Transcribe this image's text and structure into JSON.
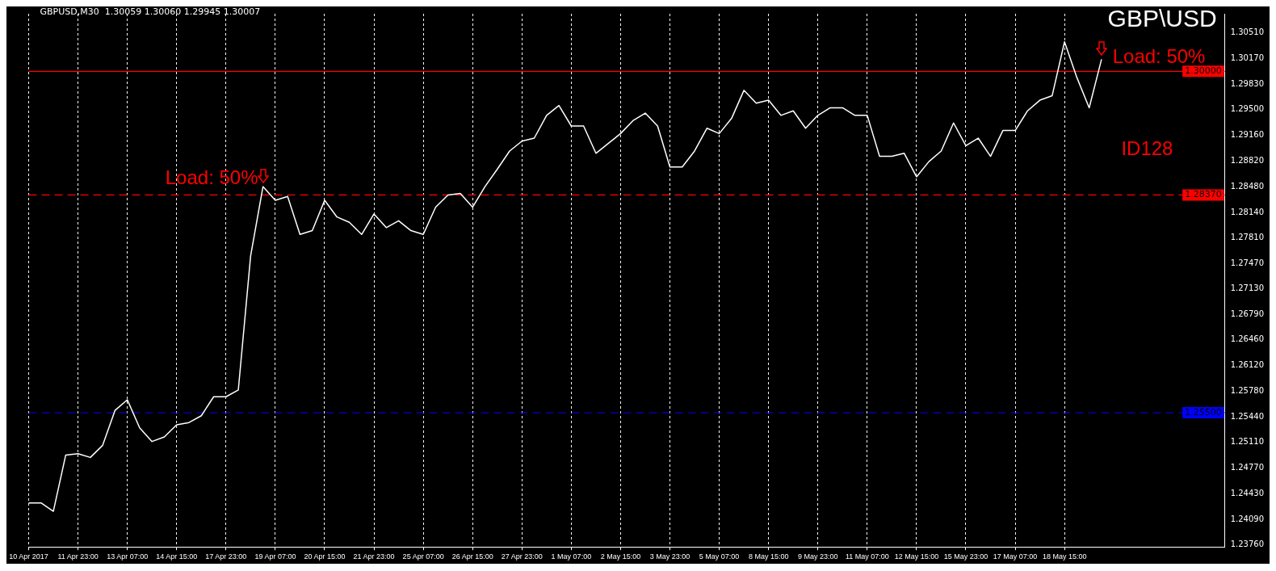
{
  "chart_data": {
    "type": "line",
    "title": "GBP\\USD",
    "subtitle": "GBPUSD,M30  1.30059 1.30060 1.29945 1.30007",
    "categories": [
      "10 Apr 2017",
      null,
      null,
      null,
      "11 Apr 23:00",
      null,
      null,
      null,
      "13 Apr 07:00",
      null,
      null,
      null,
      "14 Apr 15:00",
      null,
      null,
      null,
      "17 Apr 23:00",
      null,
      null,
      null,
      "19 Apr 07:00",
      null,
      null,
      null,
      "20 Apr 15:00",
      null,
      null,
      null,
      "21 Apr 23:00",
      null,
      null,
      null,
      "25 Apr 07:00",
      null,
      null,
      null,
      "26 Apr 15:00",
      null,
      null,
      null,
      "27 Apr 23:00",
      null,
      null,
      null,
      "1 May 07:00",
      null,
      null,
      null,
      "2 May 15:00",
      null,
      null,
      null,
      "3 May 23:00",
      null,
      null,
      null,
      "5 May 07:00",
      null,
      null,
      null,
      "8 May 15:00",
      null,
      null,
      null,
      "9 May 23:00",
      null,
      null,
      null,
      "11 May 07:00",
      null,
      null,
      null,
      "12 May 15:00",
      null,
      null,
      null,
      "15 May 23:00",
      null,
      null,
      null,
      "17 May 07:00",
      null,
      null,
      null,
      "18 May 15:00",
      null,
      null,
      null,
      null,
      null,
      null,
      null,
      null,
      null,
      null,
      null,
      null,
      null
    ],
    "series": [
      {
        "color": "#ffffff",
        "values": [
          1.2431,
          1.2431,
          1.242,
          1.2494,
          1.2496,
          1.2491,
          1.2507,
          1.2553,
          1.2567,
          1.253,
          1.2512,
          1.2518,
          1.2534,
          1.2537,
          1.2546,
          1.2571,
          1.2571,
          1.258,
          1.2757,
          1.2848,
          1.283,
          1.2835,
          1.2785,
          1.279,
          1.283,
          1.2808,
          1.2801,
          1.2785,
          1.2812,
          1.2794,
          1.2803,
          1.279,
          1.2785,
          1.2821,
          1.2837,
          1.2839,
          1.2821,
          1.2848,
          1.2871,
          1.2895,
          1.2908,
          1.2912,
          1.2942,
          1.2955,
          1.2928,
          1.2928,
          1.2892,
          1.2905,
          1.2918,
          1.2935,
          1.2945,
          1.2928,
          1.2874,
          1.2874,
          1.2895,
          1.2925,
          1.2918,
          1.2938,
          1.2975,
          1.2958,
          1.2962,
          1.2942,
          1.2948,
          1.2925,
          1.2942,
          1.2952,
          1.2952,
          1.2942,
          1.2942,
          1.2888,
          1.2888,
          1.2892,
          1.2861,
          1.2881,
          1.2895,
          1.2932,
          1.2902,
          1.2912,
          1.2888,
          1.2922,
          1.2922,
          1.2948,
          1.2962,
          1.2968,
          1.3039,
          1.2992,
          1.2952,
          1.3016,
          null,
          null,
          null,
          null,
          null,
          null,
          null,
          null,
          null,
          null
        ]
      }
    ],
    "ylim": [
      1.2373,
      1.3076
    ],
    "yticks": [
      {
        "value": 1.2376,
        "label": "1.23760"
      },
      {
        "value": 1.2409,
        "label": "1.24090"
      },
      {
        "value": 1.2443,
        "label": "1.24430"
      },
      {
        "value": 1.2477,
        "label": "1.24770"
      },
      {
        "value": 1.2511,
        "label": "1.25110"
      },
      {
        "value": 1.2544,
        "label": "1.25440"
      },
      {
        "value": 1.2578,
        "label": "1.25780"
      },
      {
        "value": 1.2612,
        "label": "1.26120"
      },
      {
        "value": 1.2646,
        "label": "1.26460"
      },
      {
        "value": 1.2679,
        "label": "1.26790"
      },
      {
        "value": 1.2713,
        "label": "1.27130"
      },
      {
        "value": 1.2747,
        "label": "1.27470"
      },
      {
        "value": 1.2781,
        "label": "1.27810"
      },
      {
        "value": 1.2814,
        "label": "1.28140"
      },
      {
        "value": 1.2848,
        "label": "1.28480"
      },
      {
        "value": 1.2882,
        "label": "1.28820"
      },
      {
        "value": 1.2916,
        "label": "1.29160"
      },
      {
        "value": 1.295,
        "label": "1.29500"
      },
      {
        "value": 1.2983,
        "label": "1.29830"
      },
      {
        "value": 1.3017,
        "label": "1.30170"
      },
      {
        "value": 1.3051,
        "label": "1.30510"
      }
    ],
    "ref_lines": [
      {
        "axis": "y",
        "value": 1.3,
        "label": "1.30000",
        "color": "#ff0000",
        "line_style": "solid"
      },
      {
        "axis": "y",
        "value": 1.2837,
        "label": "1.28370",
        "color": "#ff0000",
        "line_style": "dashed"
      },
      {
        "axis": "y",
        "value": 1.255,
        "label": "1.25500",
        "color": "#0000ff",
        "line_style": "dashed"
      }
    ],
    "annotations": [
      "Load: 50%",
      "Load: 50%",
      "ID128"
    ],
    "grid": "x",
    "legend": false,
    "marker": "none",
    "line_style": "solid"
  }
}
